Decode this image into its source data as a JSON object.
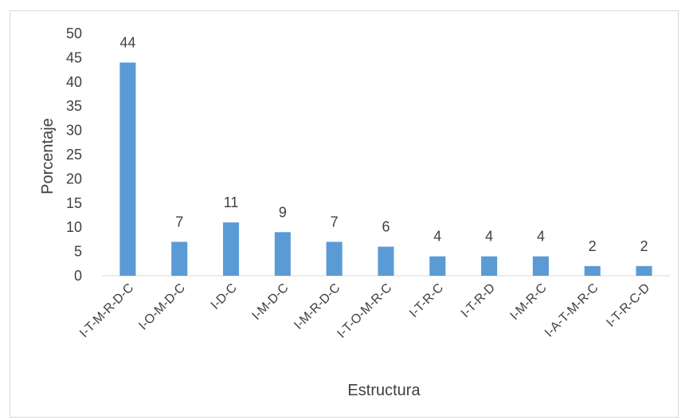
{
  "chart_data": {
    "type": "bar",
    "title": "",
    "xlabel": "Estructura",
    "ylabel": "Porcentaje",
    "categories": [
      "I-T-M-R-D-C",
      "I-O-M-D-C",
      "I-D-C",
      "I-M-D-C",
      "I-M-R-D-C",
      "I-T-O-M-R-C",
      "I-T-R-C",
      "I-T-R-D",
      "I-M-R-C",
      "I-A-T-M-R-C",
      "I-T-R-C-D"
    ],
    "values": [
      44,
      7,
      11,
      9,
      7,
      6,
      4,
      4,
      4,
      2,
      2
    ],
    "ylim": [
      0,
      50
    ],
    "yticks": [
      0,
      5,
      10,
      15,
      20,
      25,
      30,
      35,
      40,
      45,
      50
    ],
    "grid": false,
    "legend": "none",
    "data_labels": true,
    "bar_color": "#5b9bd5",
    "axis_color": "#d9d9d9",
    "text_color": "#404040"
  }
}
